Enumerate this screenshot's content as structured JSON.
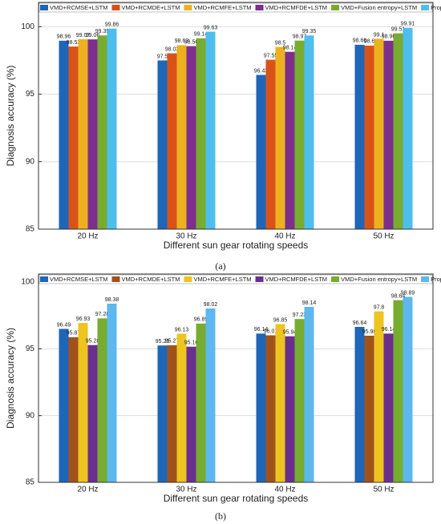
{
  "chart_data": [
    {
      "type": "bar",
      "caption": "(a)",
      "y_label": "Diagnosis accuracy (%)",
      "x_label": "Different sun gear rotating speeds",
      "categories": [
        "20 Hz",
        "30 Hz",
        "40 Hz",
        "50 Hz"
      ],
      "ylim": [
        85,
        101.8
      ],
      "yticks": [
        85,
        90,
        95,
        100
      ],
      "grid": true,
      "series": [
        {
          "name": "VMD+RCMSE+LSTM",
          "color": "#1f66b8",
          "values": [
            98.96,
            97.5,
            96.43,
            98.66
          ]
        },
        {
          "name": "VMD+RCMDE+LSTM",
          "color": "#d95319",
          "values": [
            98.53,
            98.03,
            97.55,
            98.6
          ]
        },
        {
          "name": "VMD+RCMFE+LSTM",
          "color": "#edb120",
          "values": [
            99.07,
            98.63,
            98.5,
            99.1
          ]
        },
        {
          "name": "VMD+RCMFDE+LSTM",
          "color": "#7e2f8e",
          "values": [
            99.06,
            98.56,
            98.14,
            98.96
          ]
        },
        {
          "name": "VMD+Fusion entropy+LSTM",
          "color": "#77ac30",
          "values": [
            99.35,
            99.14,
            98.97,
            99.51
          ]
        },
        {
          "name": "Proposed method",
          "color": "#4dbeee",
          "values": [
            99.86,
            99.63,
            99.35,
            99.91
          ]
        }
      ]
    },
    {
      "type": "bar",
      "caption": "(b)",
      "y_label": "Diagnosis accuracy (%)",
      "x_label": "Different sun gear rotating speeds",
      "categories": [
        "20 Hz",
        "30 Hz",
        "40 Hz",
        "50 Hz"
      ],
      "ylim": [
        85,
        100.6
      ],
      "yticks": [
        85,
        90,
        95,
        100
      ],
      "grid": true,
      "series": [
        {
          "name": "VMD+RCMSE+LSTM",
          "color": "#1f66b8",
          "values": [
            96.49,
            95.25,
            96.14,
            96.64
          ]
        },
        {
          "name": "VMD+RCMDE+LSTM",
          "color": "#a0521a",
          "values": [
            95.87,
            95.27,
            96.01,
            95.98
          ]
        },
        {
          "name": "VMD+RCMFE+LSTM",
          "color": "#edc420",
          "values": [
            96.93,
            96.13,
            96.85,
            97.8
          ]
        },
        {
          "name": "VMD+RCMFDE+LSTM",
          "color": "#6a2f8e",
          "values": [
            95.28,
            95.16,
            95.94,
            96.14
          ]
        },
        {
          "name": "VMD+Fusion entropy+LSTM",
          "color": "#77ac30",
          "values": [
            97.28,
            96.89,
            97.23,
            98.64
          ]
        },
        {
          "name": "Proposed method",
          "color": "#5cb8ee",
          "values": [
            98.38,
            98.02,
            98.14,
            98.89
          ]
        }
      ]
    }
  ]
}
